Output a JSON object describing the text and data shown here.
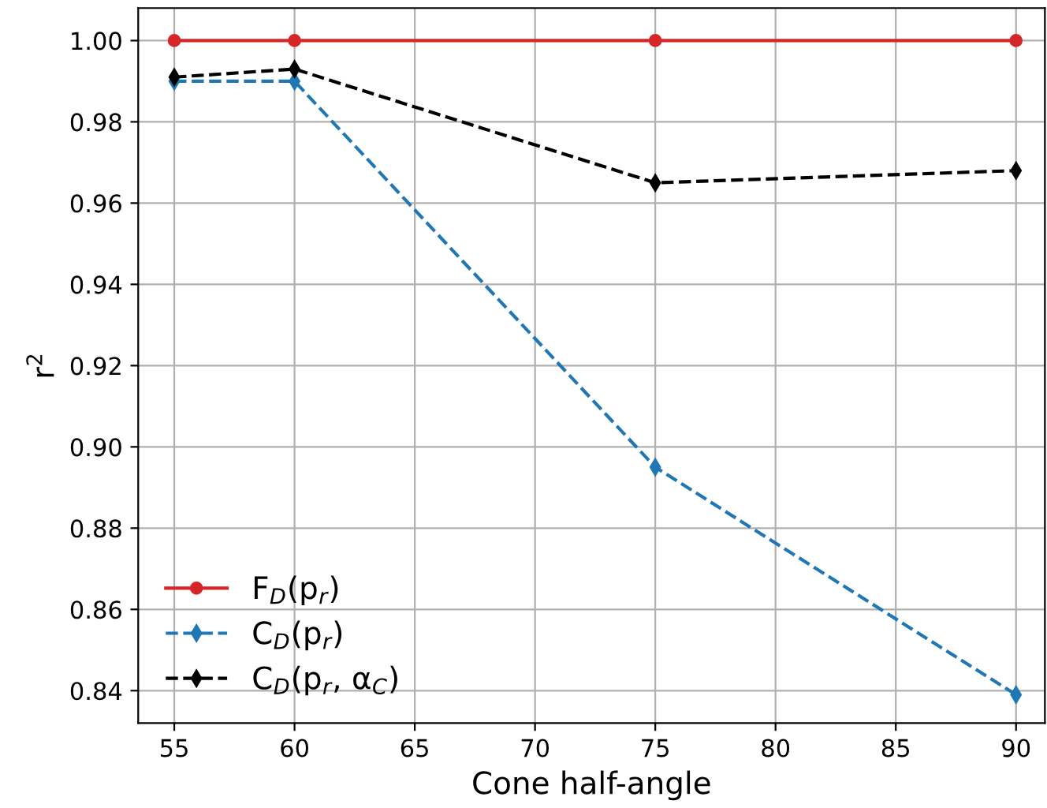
{
  "chart_data": {
    "type": "line",
    "xlabel": "Cone half-angle",
    "ylabel": "r$^{2}$",
    "x": [
      55,
      60,
      75,
      90
    ],
    "series": [
      {
        "name": "F$_{D}$(p$_{r}$)",
        "color": "#d62728",
        "values": [
          1.0,
          1.0,
          1.0,
          1.0
        ],
        "marker": "circle",
        "line_style": "solid"
      },
      {
        "name": "C$_{D}$(p$_{r}$)",
        "color": "#1f77b4",
        "values": [
          0.99,
          0.99,
          0.895,
          0.839
        ],
        "marker": "diamond",
        "line_style": "dashed"
      },
      {
        "name": "C$_{D}$(p$_{r}$, α$_{C}$)",
        "color": "#000000",
        "values": [
          0.991,
          0.993,
          0.965,
          0.968
        ],
        "marker": "diamond",
        "line_style": "dashed"
      }
    ],
    "xlim": [
      53.5,
      91.2
    ],
    "ylim": [
      0.832,
      1.008
    ],
    "xticks": [
      55,
      60,
      65,
      70,
      75,
      80,
      85,
      90
    ],
    "yticks": [
      0.84,
      0.86,
      0.88,
      {
        "value": 0.9,
        "label": "0.90"
      },
      0.92,
      0.94,
      0.96,
      0.98,
      {
        "value": 1,
        "label": "1.00"
      }
    ],
    "grid": true,
    "legend": "bottom left"
  }
}
